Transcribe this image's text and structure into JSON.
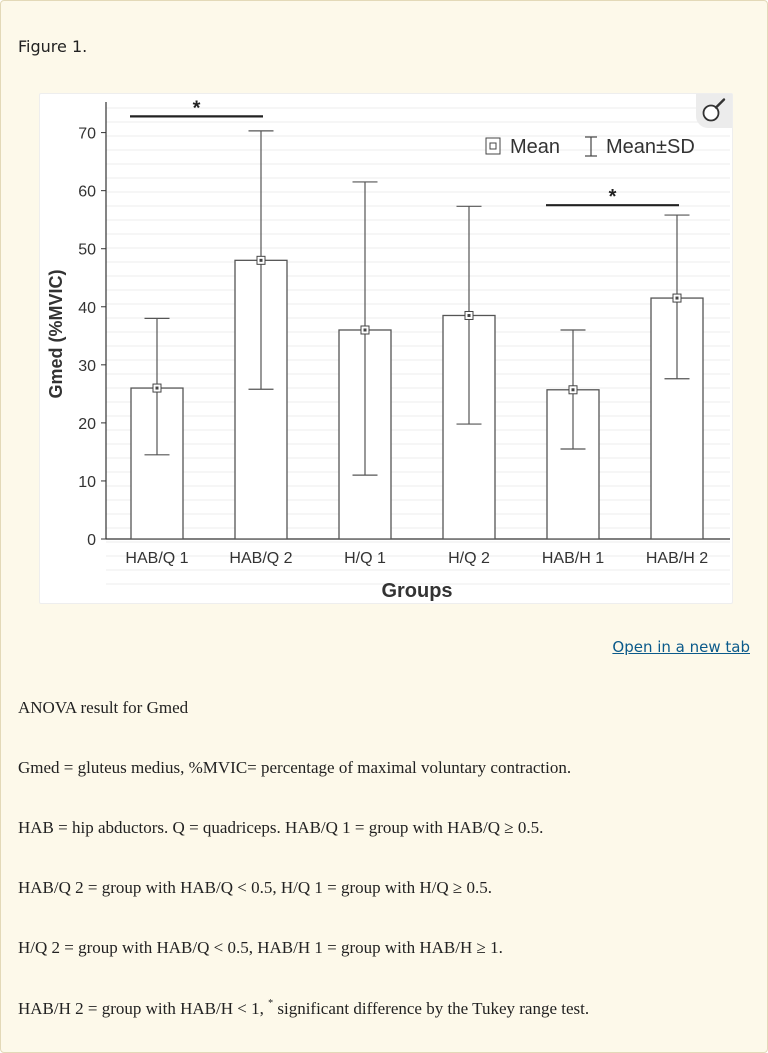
{
  "figure_label": "Figure 1.",
  "open_link": "Open in a new tab",
  "chart_data": {
    "type": "bar",
    "xlabel": "Groups",
    "ylabel": "Gmed (%MVIC)",
    "ylim": [
      0,
      75
    ],
    "yticks": [
      0,
      10,
      20,
      30,
      40,
      50,
      60,
      70
    ],
    "categories": [
      "HAB/Q 1",
      "HAB/Q 2",
      "H/Q 1",
      "H/Q 2",
      "HAB/H 1",
      "HAB/H 2"
    ],
    "mean": [
      26,
      48,
      36,
      38.5,
      25.7,
      41.5
    ],
    "lower": [
      14.5,
      25.8,
      11,
      19.8,
      15.5,
      27.6
    ],
    "upper": [
      38,
      70.3,
      61.5,
      57.3,
      36,
      55.8
    ],
    "legend": {
      "mean_label": "Mean",
      "sd_label": "Mean±SD",
      "position": "top-right"
    },
    "significance": [
      {
        "from": 0,
        "to": 1,
        "level": 72.8,
        "marker": "*"
      },
      {
        "from": 4,
        "to": 5,
        "level": 57.5,
        "marker": "*"
      }
    ]
  },
  "caption": {
    "line1": "ANOVA result for Gmed",
    "line2": "Gmed = gluteus medius, %MVIC= percentage of maximal voluntary contraction.",
    "line3": "HAB = hip abductors. Q = quadriceps. HAB/Q 1 = group with HAB/Q ≥ 0.5.",
    "line4": "HAB/Q 2 = group with HAB/Q < 0.5, H/Q 1 = group with H/Q ≥ 0.5.",
    "line5": "H/Q 2 = group with HAB/Q < 0.5, HAB/H 1 = group with HAB/H ≥ 1.",
    "line6_pre": "HAB/H 2 = group with HAB/H < 1, ",
    "line6_sup": "*",
    "line6_post": " significant difference by the Tukey range test."
  }
}
